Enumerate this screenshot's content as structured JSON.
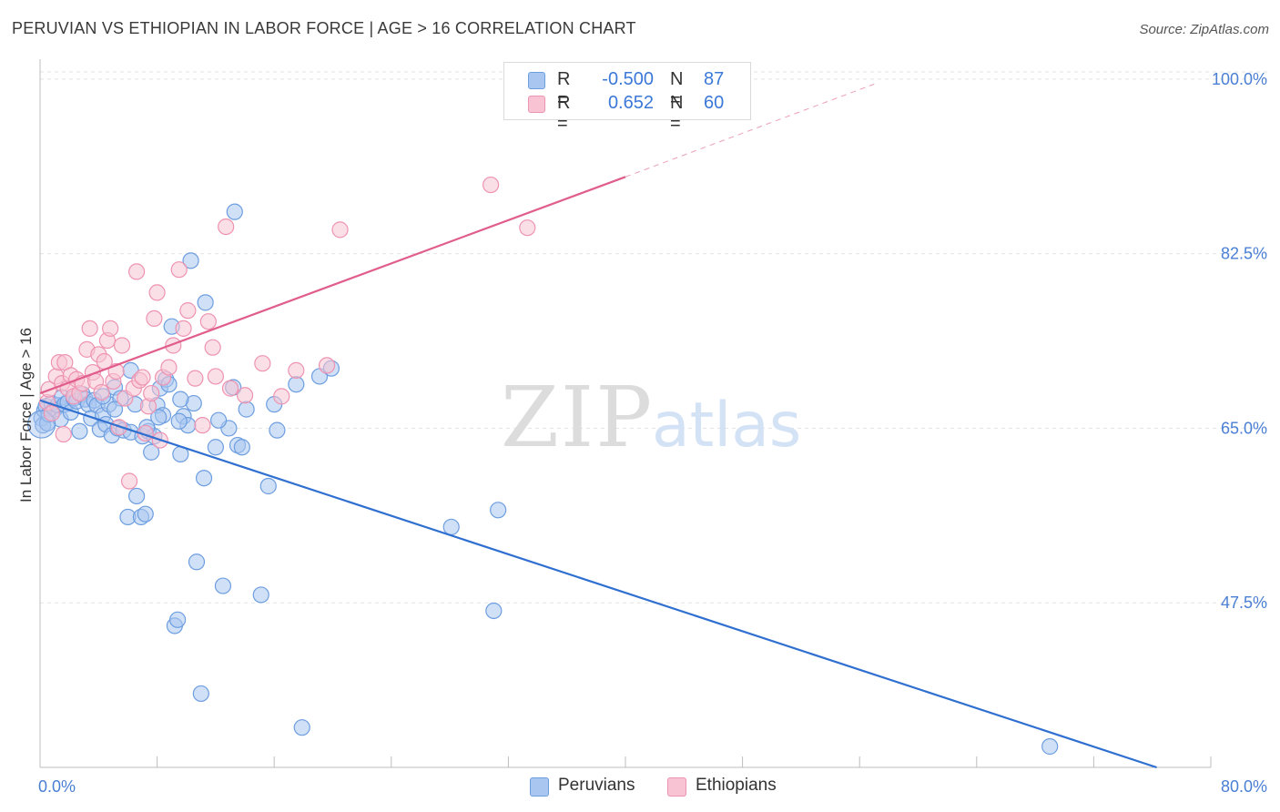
{
  "title": "PERUVIAN VS ETHIOPIAN IN LABOR FORCE | AGE > 16 CORRELATION CHART",
  "source": "Source: ZipAtlas.com",
  "watermark": {
    "zip": "ZIP",
    "atlas": "atlas"
  },
  "legend": {
    "rows": [
      {
        "r_label": "R =",
        "r_value": "-0.500",
        "n_label": "N =",
        "n_value": "87",
        "color": "#a9c6f0",
        "border": "#6d9ee0"
      },
      {
        "r_label": "R =",
        "r_value": "0.652",
        "n_label": "N =",
        "n_value": "60",
        "color": "#f8c4d4",
        "border": "#ee93b1"
      }
    ]
  },
  "bottom_legend": [
    {
      "label": "Peruvians",
      "color": "#a9c6f0",
      "border": "#6d9ee0"
    },
    {
      "label": "Ethiopians",
      "color": "#f8c4d4",
      "border": "#ee93b1"
    }
  ],
  "chart_data": {
    "type": "scatter",
    "title": "PERUVIAN VS ETHIOPIAN IN LABOR FORCE | AGE > 16 CORRELATION CHART",
    "xlabel": "",
    "ylabel": "In Labor Force | Age > 16",
    "xlim": [
      0,
      80
    ],
    "ylim": [
      31,
      102
    ],
    "x_tick_labels": [
      "0.0%",
      "80.0%"
    ],
    "y_ticks": [
      100,
      82.5,
      65,
      47.5
    ],
    "y_tick_labels": [
      "100.0%",
      "82.5%",
      "65.0%",
      "47.5%"
    ],
    "grid": true,
    "series": [
      {
        "name": "Peruvians",
        "color": "#6d9ee0",
        "fill": "#a9c6f0",
        "trend": {
          "x0": 0,
          "y0": 67.8,
          "x1": 76.3,
          "y1": 31,
          "color": "#2f6fd0"
        },
        "points": [
          [
            0.1,
            66.0
          ],
          [
            0.2,
            65.3
          ],
          [
            0.3,
            66.8
          ],
          [
            0.4,
            67.2
          ],
          [
            0.5,
            65.5
          ],
          [
            0.6,
            66.4
          ],
          [
            0.8,
            67.5
          ],
          [
            1.0,
            66.9
          ],
          [
            1.2,
            67.3
          ],
          [
            1.4,
            65.9
          ],
          [
            1.5,
            68.1
          ],
          [
            1.7,
            67.4
          ],
          [
            1.9,
            67.6
          ],
          [
            2.1,
            66.6
          ],
          [
            2.3,
            68.0
          ],
          [
            2.5,
            67.7
          ],
          [
            2.7,
            64.7
          ],
          [
            2.9,
            68.4
          ],
          [
            3.1,
            67.9
          ],
          [
            3.3,
            67.4
          ],
          [
            3.5,
            66.0
          ],
          [
            3.7,
            67.8
          ],
          [
            3.9,
            67.3
          ],
          [
            4.1,
            64.9
          ],
          [
            4.3,
            66.3
          ],
          [
            4.5,
            65.4
          ],
          [
            4.7,
            67.4
          ],
          [
            4.9,
            64.3
          ],
          [
            5.1,
            69.1
          ],
          [
            5.3,
            65.0
          ],
          [
            5.5,
            68.0
          ],
          [
            5.7,
            64.8
          ],
          [
            6.0,
            56.1
          ],
          [
            6.2,
            64.6
          ],
          [
            6.5,
            67.4
          ],
          [
            6.9,
            56.1
          ],
          [
            7.0,
            64.2
          ],
          [
            7.2,
            56.4
          ],
          [
            7.4,
            64.7
          ],
          [
            7.6,
            62.6
          ],
          [
            7.8,
            64.2
          ],
          [
            8.0,
            67.3
          ],
          [
            8.2,
            69.0
          ],
          [
            8.4,
            66.3
          ],
          [
            8.6,
            69.9
          ],
          [
            8.8,
            69.4
          ],
          [
            9.0,
            75.2
          ],
          [
            9.2,
            45.2
          ],
          [
            9.4,
            45.8
          ],
          [
            9.6,
            62.4
          ],
          [
            9.8,
            66.2
          ],
          [
            10.1,
            65.3
          ],
          [
            10.3,
            81.8
          ],
          [
            10.5,
            67.5
          ],
          [
            10.7,
            51.6
          ],
          [
            11.0,
            38.4
          ],
          [
            11.3,
            77.6
          ],
          [
            12.0,
            63.1
          ],
          [
            12.5,
            49.2
          ],
          [
            12.9,
            65.0
          ],
          [
            13.2,
            69.1
          ],
          [
            13.3,
            86.7
          ],
          [
            13.5,
            63.3
          ],
          [
            13.8,
            63.1
          ],
          [
            15.1,
            48.3
          ],
          [
            15.6,
            59.2
          ],
          [
            16.0,
            67.4
          ],
          [
            16.2,
            64.8
          ],
          [
            17.5,
            69.4
          ],
          [
            17.9,
            35.0
          ],
          [
            19.1,
            70.2
          ],
          [
            19.9,
            71.0
          ],
          [
            4.3,
            68.2
          ],
          [
            5.1,
            66.9
          ],
          [
            6.2,
            70.8
          ],
          [
            7.3,
            65.1
          ],
          [
            8.1,
            66.1
          ],
          [
            9.5,
            65.7
          ],
          [
            11.2,
            60.0
          ],
          [
            12.2,
            65.8
          ],
          [
            14.1,
            66.9
          ],
          [
            9.6,
            67.9
          ],
          [
            28.1,
            55.1
          ],
          [
            31.3,
            56.8
          ],
          [
            31.0,
            46.7
          ],
          [
            69.0,
            33.1
          ],
          [
            6.6,
            58.2
          ]
        ]
      },
      {
        "name": "Ethiopians",
        "color": "#ee93b1",
        "fill": "#f8c4d4",
        "trend": {
          "x0": 0,
          "y0": 68.5,
          "x1": 40.0,
          "y1": 90.2,
          "color": "#e05d8c",
          "dash_to": {
            "x1": 57.0,
            "y1": 99.5
          }
        },
        "points": [
          [
            0.5,
            67.6
          ],
          [
            0.6,
            68.9
          ],
          [
            0.8,
            66.5
          ],
          [
            1.1,
            70.2
          ],
          [
            1.3,
            71.6
          ],
          [
            1.5,
            69.5
          ],
          [
            1.7,
            71.6
          ],
          [
            1.9,
            69.0
          ],
          [
            2.1,
            70.3
          ],
          [
            2.3,
            68.2
          ],
          [
            2.5,
            69.9
          ],
          [
            2.7,
            68.5
          ],
          [
            2.9,
            69.5
          ],
          [
            3.2,
            72.9
          ],
          [
            3.4,
            75.0
          ],
          [
            3.6,
            70.6
          ],
          [
            3.8,
            69.7
          ],
          [
            4.0,
            72.4
          ],
          [
            4.2,
            68.6
          ],
          [
            4.4,
            71.7
          ],
          [
            4.6,
            73.8
          ],
          [
            4.8,
            75.0
          ],
          [
            5.0,
            69.7
          ],
          [
            5.2,
            70.7
          ],
          [
            5.4,
            65.1
          ],
          [
            5.6,
            73.3
          ],
          [
            5.8,
            68.0
          ],
          [
            6.1,
            59.7
          ],
          [
            6.4,
            69.0
          ],
          [
            6.6,
            80.7
          ],
          [
            6.8,
            69.8
          ],
          [
            7.0,
            70.1
          ],
          [
            7.2,
            64.5
          ],
          [
            7.4,
            67.2
          ],
          [
            7.6,
            68.5
          ],
          [
            7.8,
            76.0
          ],
          [
            8.0,
            78.6
          ],
          [
            8.2,
            63.8
          ],
          [
            8.4,
            70.1
          ],
          [
            8.8,
            71.1
          ],
          [
            9.1,
            73.3
          ],
          [
            9.5,
            80.9
          ],
          [
            9.8,
            75.0
          ],
          [
            10.1,
            76.8
          ],
          [
            10.6,
            70.0
          ],
          [
            11.1,
            65.3
          ],
          [
            11.5,
            75.7
          ],
          [
            11.8,
            73.1
          ],
          [
            12.0,
            70.2
          ],
          [
            12.7,
            85.2
          ],
          [
            13.0,
            69.0
          ],
          [
            14.0,
            68.3
          ],
          [
            15.2,
            71.5
          ],
          [
            16.5,
            68.2
          ],
          [
            17.5,
            70.8
          ],
          [
            19.6,
            71.3
          ],
          [
            20.5,
            84.9
          ],
          [
            30.8,
            89.4
          ],
          [
            33.3,
            85.1
          ],
          [
            1.6,
            64.4
          ]
        ]
      }
    ]
  }
}
